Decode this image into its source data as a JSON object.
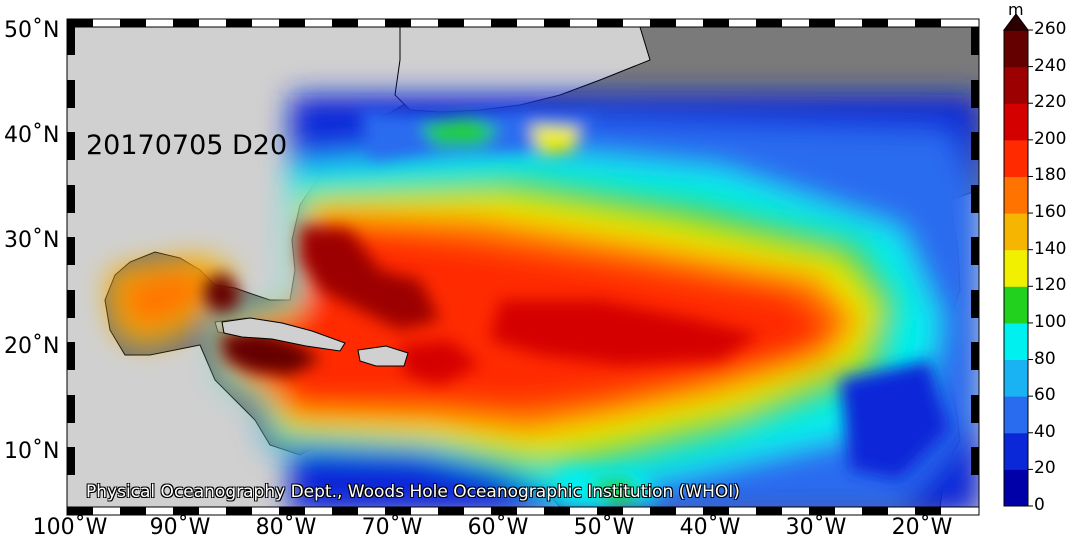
{
  "map": {
    "date_label": "20170705 D20",
    "credit": "Physical Oceanography Dept., Woods Hole Oceanographic Institution (WHOI)",
    "lat_labels": [
      "50˚N",
      "40˚N",
      "30˚N",
      "20˚N",
      "10˚N"
    ],
    "lon_labels": [
      "100˚W",
      "90˚W",
      "80˚W",
      "70˚W",
      "60˚W",
      "50˚W",
      "40˚W",
      "30˚W",
      "20˚W"
    ]
  },
  "colorbar": {
    "unit": "m",
    "ticks": [
      "260",
      "240",
      "220",
      "200",
      "180",
      "160",
      "140",
      "120",
      "100",
      "80",
      "60",
      "40",
      "20",
      "0"
    ],
    "colors": [
      "#0000a8",
      "#0a28d8",
      "#2a6cf0",
      "#19b2f2",
      "#00f0f0",
      "#22d11e",
      "#f0f000",
      "#f5b500",
      "#ff7300",
      "#ff2a00",
      "#d40000",
      "#9c0000",
      "#650000"
    ],
    "arrow_color": "#2b0000",
    "land_color": "#d0d0d0",
    "nodata_color": "#7a7a7a"
  }
}
